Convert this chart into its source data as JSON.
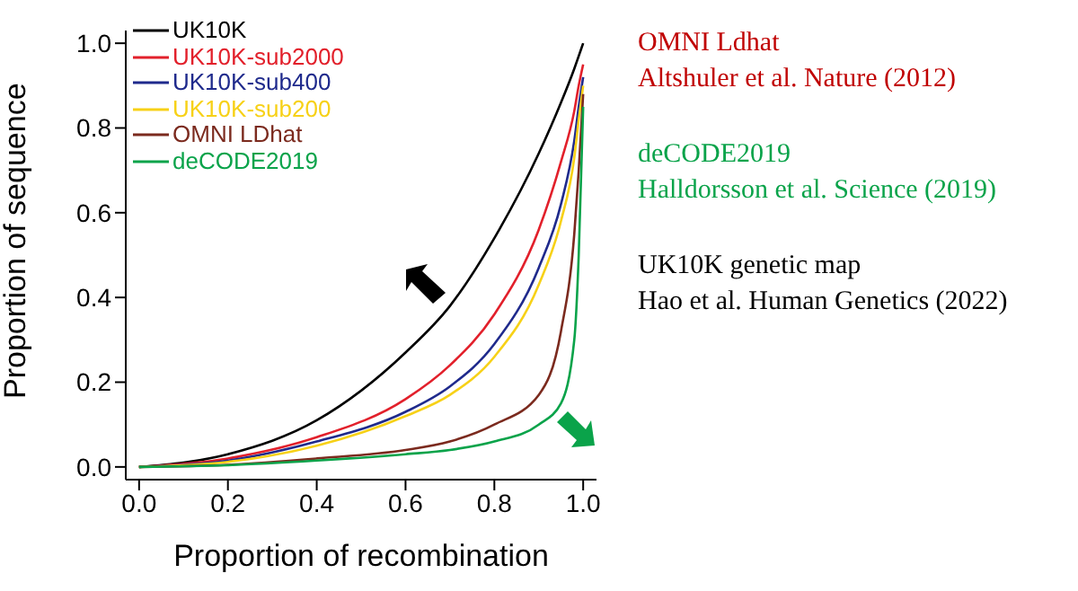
{
  "chart_data": {
    "type": "line",
    "xlabel": "Proportion of recombination",
    "ylabel": "Proportion of sequence",
    "x": [
      0,
      0.2,
      0.4,
      0.6,
      0.7,
      0.8,
      0.9,
      0.95,
      0.98,
      0.99,
      1
    ],
    "series": [
      {
        "name": "UK10K",
        "color": "#000000",
        "values": [
          0,
          0.03,
          0.11,
          0.27,
          0.38,
          0.54,
          0.74,
          0.86,
          0.94,
          0.97,
          1
        ]
      },
      {
        "name": "UK10K-sub2000",
        "color": "#e2202b",
        "values": [
          0,
          0.02,
          0.07,
          0.16,
          0.24,
          0.36,
          0.56,
          0.72,
          0.84,
          0.9,
          0.95
        ]
      },
      {
        "name": "UK10K-sub400",
        "color": "#1f2a8c",
        "values": [
          0,
          0.015,
          0.06,
          0.13,
          0.19,
          0.29,
          0.47,
          0.62,
          0.77,
          0.85,
          0.92
        ]
      },
      {
        "name": "UK10K-sub200",
        "color": "#f7d117",
        "values": [
          0,
          0.012,
          0.05,
          0.12,
          0.17,
          0.26,
          0.43,
          0.58,
          0.73,
          0.82,
          0.9
        ]
      },
      {
        "name": "OMNI LDhat",
        "color": "#7b2a1e",
        "values": [
          0,
          0.005,
          0.02,
          0.04,
          0.06,
          0.1,
          0.17,
          0.32,
          0.55,
          0.7,
          0.88
        ]
      },
      {
        "name": "deCODE2019",
        "color": "#0aa34a",
        "values": [
          0,
          0.004,
          0.015,
          0.03,
          0.04,
          0.06,
          0.1,
          0.15,
          0.3,
          0.5,
          0.85
        ]
      }
    ],
    "xlim": [
      -0.03,
      1.03
    ],
    "ylim": [
      -0.03,
      1.03
    ],
    "xticks": [
      {
        "value": 0,
        "label": "0.0"
      },
      {
        "value": 0.2,
        "label": "0.2"
      },
      {
        "value": 0.4,
        "label": "0.4"
      },
      {
        "value": 0.6,
        "label": "0.6"
      },
      {
        "value": 0.8,
        "label": "0.8"
      },
      {
        "value": 1,
        "label": "1.0"
      }
    ],
    "yticks": [
      {
        "value": 0,
        "label": "0.0"
      },
      {
        "value": 0.2,
        "label": "0.2"
      },
      {
        "value": 0.4,
        "label": "0.4"
      },
      {
        "value": 0.6,
        "label": "0.6"
      },
      {
        "value": 0.8,
        "label": "0.8"
      },
      {
        "value": 1,
        "label": "1.0"
      }
    ],
    "grid": false,
    "legend": "top left",
    "marker": "none",
    "line_style": "solid",
    "annotations": [
      "OMNI Ldhat",
      "Altshuler et al. Nature (2012)",
      "deCODE2019",
      "Halldorsson et al. Science (2019)",
      "UK10K genetic map",
      "Hao et al. Human Genetics (2022)"
    ]
  }
}
